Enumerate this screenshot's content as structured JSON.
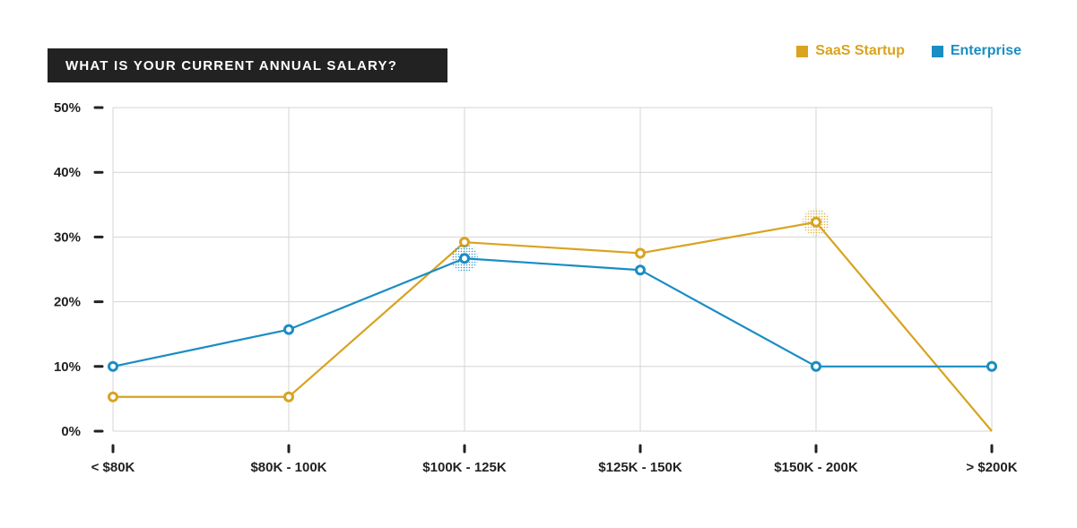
{
  "chart_data": {
    "type": "line",
    "title": "WHAT IS YOUR CURRENT ANNUAL SALARY?",
    "categories": [
      "< $80K",
      "$80K - 100K",
      "$100K - 125K",
      "$125K - 150K",
      "$150K - 200K",
      "> $200K"
    ],
    "y_ticks": [
      "0%",
      "10%",
      "20%",
      "30%",
      "40%",
      "50%"
    ],
    "ylim": [
      0,
      50
    ],
    "grid": true,
    "legend_position": "top-right",
    "series": [
      {
        "name": "SaaS Startup",
        "color": "#D9A320",
        "values": [
          5.3,
          5.3,
          29.2,
          27.5,
          32.3,
          0
        ],
        "markers": [
          true,
          true,
          true,
          true,
          true,
          false
        ],
        "highlight_index": 4
      },
      {
        "name": "Enterprise",
        "color": "#1A8DC4",
        "values": [
          10,
          15.7,
          26.7,
          24.9,
          10,
          10
        ],
        "markers": [
          true,
          true,
          true,
          true,
          true,
          true
        ],
        "highlight_index": 2
      }
    ]
  }
}
